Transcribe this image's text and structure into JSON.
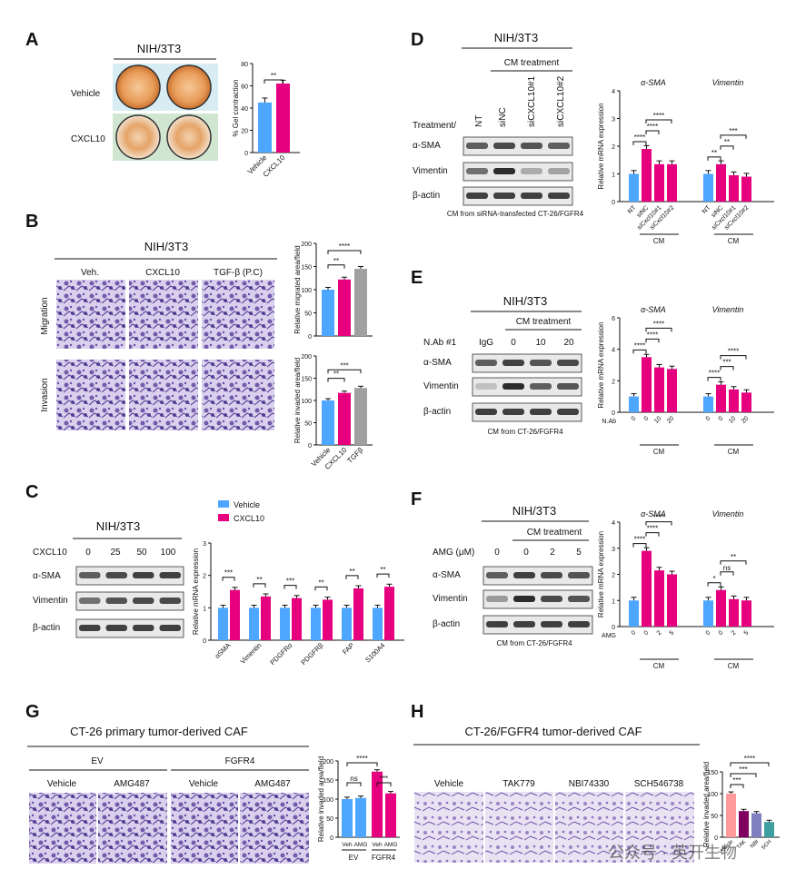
{
  "panels": {
    "A": {
      "letter": "A",
      "title": "NIH/3T3",
      "rows": [
        "Vehicle",
        "CXCL10"
      ],
      "chart": {
        "ylabel": "% Gel contraction",
        "ylim": [
          0,
          80
        ],
        "ticks": [
          "0",
          "20",
          "40",
          "60",
          "80"
        ],
        "categories": [
          "Vehicle",
          "CXCL10"
        ],
        "values": [
          45,
          62
        ],
        "errors": [
          4,
          3
        ],
        "colors": [
          "#4da6ff",
          "#e6007e"
        ],
        "sig": [
          "**"
        ]
      }
    },
    "B": {
      "letter": "B",
      "title": "NIH/3T3",
      "cols": [
        "Veh.",
        "CXCL10",
        "TGF-β (P.C)"
      ],
      "rows": [
        "Migration",
        "Invasion"
      ],
      "chart_mig": {
        "ylabel": "Relative migrated area/field",
        "ylim": [
          0,
          200
        ],
        "ticks": [
          "0",
          "50",
          "100",
          "150",
          "200"
        ],
        "values": [
          100,
          122,
          145
        ],
        "errors": [
          5,
          5,
          5
        ],
        "colors": [
          "#4da6ff",
          "#e6007e",
          "#a0a0a0"
        ],
        "sig": [
          "**",
          "****"
        ]
      },
      "chart_inv": {
        "ylabel": "Relative invaded area/field",
        "ylim": [
          0,
          200
        ],
        "ticks": [
          "0",
          "50",
          "100",
          "150",
          "200"
        ],
        "categories": [
          "Vehicle",
          "CXCL10",
          "TGFβ"
        ],
        "values": [
          100,
          117,
          128
        ],
        "errors": [
          4,
          4,
          4
        ],
        "colors": [
          "#4da6ff",
          "#e6007e",
          "#a0a0a0"
        ],
        "sig": [
          "**",
          "***"
        ]
      }
    },
    "C": {
      "letter": "C",
      "title": "NIH/3T3",
      "treat_label": "CXCL10",
      "doses": [
        "0",
        "25",
        "50",
        "100"
      ],
      "blots": [
        "α-SMA",
        "Vimentin",
        "β-actin"
      ],
      "legend": [
        {
          "name": "Vehicle",
          "color": "#4da6ff"
        },
        {
          "name": "CXCL10",
          "color": "#e6007e"
        }
      ],
      "chart": {
        "ylabel": "Relative mRNA expression",
        "ylim": [
          0,
          3
        ],
        "ticks": [
          "0",
          "1",
          "2",
          "3"
        ],
        "categories": [
          "αSMA",
          "Vimentin",
          "PDGFRα",
          "PDGFRβ",
          "FAP",
          "S100A4"
        ],
        "series": [
          {
            "name": "Vehicle",
            "values": [
              1.0,
              1.0,
              1.0,
              1.0,
              1.0,
              1.0
            ]
          },
          {
            "name": "CXCL10",
            "values": [
              1.55,
              1.35,
              1.3,
              1.25,
              1.6,
              1.65
            ]
          }
        ],
        "sig": [
          "***",
          "**",
          "***",
          "**",
          "**",
          "**"
        ]
      }
    },
    "D": {
      "letter": "D",
      "title": "NIH/3T3",
      "cm_label": "CM treatment",
      "treat_label": "Treatment/",
      "lanes": [
        "NT",
        "siNC",
        "siCXCL10#1",
        "siCXCL10#2"
      ],
      "blots": [
        "α-SMA",
        "Vimentin",
        "β-actin"
      ],
      "footer": "CM from siRNA-transfected CT-26/FGFR4",
      "chart": {
        "ylabel": "Relative mRNA expression",
        "ylim": [
          0,
          4
        ],
        "ticks": [
          "0",
          "1",
          "2",
          "3",
          "4"
        ],
        "genes": [
          "α-SMA",
          "Vimentin"
        ],
        "categories": [
          "NT",
          "siNC",
          "siCxcl10#1",
          "siCxcl10#2"
        ],
        "group_label": "CM",
        "series": [
          {
            "name": "α-SMA",
            "values": [
              1.0,
              1.9,
              1.35,
              1.35
            ]
          },
          {
            "name": "Vimentin",
            "values": [
              1.0,
              1.35,
              0.95,
              0.9
            ]
          }
        ],
        "sig": [
          "****",
          "****",
          "****",
          "**",
          "**",
          "***"
        ]
      }
    },
    "E": {
      "letter": "E",
      "title": "NIH/3T3",
      "cm_label": "CM treatment",
      "treat_label": "N.Ab #1",
      "lanes": [
        "IgG",
        "0",
        "10",
        "20"
      ],
      "blots": [
        "α-SMA",
        "Vimentin",
        "β-actin"
      ],
      "footer": "CM from  CT-26/FGFR4",
      "chart": {
        "ylabel": "Relative mRNA expression",
        "ylim": [
          0,
          6
        ],
        "ticks": [
          "0",
          "2",
          "4",
          "6"
        ],
        "genes": [
          "α-SMA",
          "Vimentin"
        ],
        "categories": [
          "0",
          "0",
          "10",
          "20"
        ],
        "xprefix": "N.Ab",
        "group_label": "CM",
        "series": [
          {
            "name": "α-SMA",
            "values": [
              1.0,
              3.5,
              2.85,
              2.75
            ]
          },
          {
            "name": "Vimentin",
            "values": [
              1.0,
              1.75,
              1.45,
              1.25
            ]
          }
        ],
        "sig": [
          "****",
          "****",
          "****",
          "****",
          "***",
          "****"
        ]
      }
    },
    "F": {
      "letter": "F",
      "title": "NIH/3T3",
      "cm_label": "CM treatment",
      "treat_label": "AMG (μM)",
      "lanes": [
        "0",
        "0",
        "2",
        "5"
      ],
      "blots": [
        "α-SMA",
        "Vimentin",
        "β-actin"
      ],
      "footer": "CM from CT-26/FGFR4",
      "chart": {
        "ylabel": "Relative mRNA expression",
        "ylim": [
          0,
          4
        ],
        "ticks": [
          "0",
          "1",
          "2",
          "3",
          "4"
        ],
        "genes": [
          "α-SMA",
          "Vimentin"
        ],
        "categories": [
          "0",
          "0",
          "2",
          "5"
        ],
        "xprefix": "AMG",
        "group_label": "CM",
        "series": [
          {
            "name": "α-SMA",
            "values": [
              1.0,
              2.9,
              2.15,
              2.0
            ]
          },
          {
            "name": "Vimentin",
            "values": [
              1.0,
              1.4,
              1.05,
              1.0
            ]
          }
        ],
        "sig": [
          "****",
          "****",
          "****",
          "*",
          "ns",
          "**"
        ]
      }
    },
    "G": {
      "letter": "G",
      "title": "CT-26 primary tumor-derived CAF",
      "groups": [
        "EV",
        "FGFR4"
      ],
      "cols": [
        "Vehicle",
        "AMG487",
        "Vehicle",
        "AMG487"
      ],
      "chart": {
        "ylabel": "Relative invaded area/field",
        "ylim": [
          0,
          200
        ],
        "ticks": [
          "0",
          "50",
          "100",
          "150",
          "200"
        ],
        "categories": [
          "Veh",
          "AMG",
          "Veh",
          "AMG"
        ],
        "groups": [
          "EV",
          "FGFR4"
        ],
        "values": [
          100,
          103,
          172,
          115
        ],
        "colors": [
          "#4da6ff",
          "#4da6ff",
          "#e6007e",
          "#e6007e"
        ],
        "sig": [
          "****",
          "ns",
          "***"
        ]
      }
    },
    "H": {
      "letter": "H",
      "title": "CT-26/FGFR4 tumor-derived CAF",
      "cols": [
        "Vehicle",
        "TAK779",
        "NBI74330",
        "SCH546738"
      ],
      "chart": {
        "ylabel": "Relative invaded area/field",
        "ylim": [
          0,
          150
        ],
        "ticks": [
          "0",
          "50",
          "100",
          "150"
        ],
        "categories": [
          "Vehicle",
          "TAK",
          "NBI",
          "SCH"
        ],
        "values": [
          100,
          60,
          55,
          35
        ],
        "colors": [
          "#ff9b9b",
          "#800060",
          "#8080c0",
          "#40a0a0"
        ],
        "sig": [
          "****",
          "***",
          "***"
        ]
      },
      "watermark": "公众号 · 英开生物"
    }
  },
  "chart_data": [
    {
      "type": "bar",
      "title": "A: % Gel contraction",
      "categories": [
        "Vehicle",
        "CXCL10"
      ],
      "values": [
        45,
        62
      ],
      "ylabel": "% Gel contraction",
      "ylim": [
        0,
        80
      ]
    },
    {
      "type": "bar",
      "title": "B: Migration",
      "categories": [
        "Veh.",
        "CXCL10",
        "TGF-β"
      ],
      "values": [
        100,
        122,
        145
      ],
      "ylabel": "Relative migrated area/field",
      "ylim": [
        0,
        200
      ]
    },
    {
      "type": "bar",
      "title": "B: Invasion",
      "categories": [
        "Vehicle",
        "CXCL10",
        "TGFβ"
      ],
      "values": [
        100,
        117,
        128
      ],
      "ylabel": "Relative invaded area/field",
      "ylim": [
        0,
        200
      ]
    },
    {
      "type": "bar",
      "title": "C",
      "categories": [
        "αSMA",
        "Vimentin",
        "PDGFRα",
        "PDGFRβ",
        "FAP",
        "S100A4"
      ],
      "series": [
        {
          "name": "Vehicle",
          "values": [
            1,
            1,
            1,
            1,
            1,
            1
          ]
        },
        {
          "name": "CXCL10",
          "values": [
            1.55,
            1.35,
            1.3,
            1.25,
            1.6,
            1.65
          ]
        }
      ],
      "ylabel": "Relative mRNA expression",
      "ylim": [
        0,
        3
      ]
    },
    {
      "type": "bar",
      "title": "D",
      "categories": [
        "NT",
        "siNC",
        "siCxcl10#1",
        "siCxcl10#2"
      ],
      "series": [
        {
          "name": "α-SMA",
          "values": [
            1,
            1.9,
            1.35,
            1.35
          ]
        },
        {
          "name": "Vimentin",
          "values": [
            1,
            1.35,
            0.95,
            0.9
          ]
        }
      ],
      "ylim": [
        0,
        4
      ]
    },
    {
      "type": "bar",
      "title": "E",
      "categories": [
        "0",
        "0",
        "10",
        "20"
      ],
      "series": [
        {
          "name": "α-SMA",
          "values": [
            1,
            3.5,
            2.85,
            2.75
          ]
        },
        {
          "name": "Vimentin",
          "values": [
            1,
            1.75,
            1.45,
            1.25
          ]
        }
      ],
      "ylim": [
        0,
        6
      ]
    },
    {
      "type": "bar",
      "title": "F",
      "categories": [
        "0",
        "0",
        "2",
        "5"
      ],
      "series": [
        {
          "name": "α-SMA",
          "values": [
            1,
            2.9,
            2.15,
            2.0
          ]
        },
        {
          "name": "Vimentin",
          "values": [
            1,
            1.4,
            1.05,
            1.0
          ]
        }
      ],
      "ylim": [
        0,
        4
      ]
    },
    {
      "type": "bar",
      "title": "G",
      "categories": [
        "Veh EV",
        "AMG EV",
        "Veh FGFR4",
        "AMG FGFR4"
      ],
      "values": [
        100,
        103,
        172,
        115
      ],
      "ylim": [
        0,
        200
      ]
    },
    {
      "type": "bar",
      "title": "H",
      "categories": [
        "Vehicle",
        "TAK",
        "NBI",
        "SCH"
      ],
      "values": [
        100,
        60,
        55,
        35
      ],
      "ylim": [
        0,
        150
      ]
    }
  ]
}
